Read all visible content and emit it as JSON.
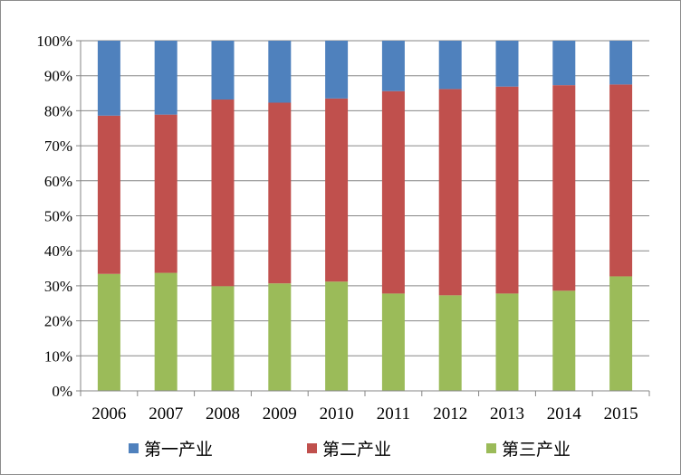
{
  "chart_data": {
    "type": "bar",
    "stacked": true,
    "percent": true,
    "categories": [
      "2006",
      "2007",
      "2008",
      "2009",
      "2010",
      "2011",
      "2012",
      "2013",
      "2014",
      "2015"
    ],
    "series": [
      {
        "name": "第三产业",
        "color": "#9bbb59",
        "values": [
          33.4,
          33.7,
          29.9,
          30.7,
          31.2,
          27.8,
          27.3,
          27.8,
          28.6,
          32.7
        ]
      },
      {
        "name": "第二产业",
        "color": "#c0504d",
        "values": [
          45.2,
          45.2,
          53.3,
          51.6,
          52.3,
          57.8,
          58.9,
          59.1,
          58.7,
          54.8
        ]
      },
      {
        "name": "第一产业",
        "color": "#4f81bd",
        "values": [
          21.4,
          21.1,
          16.8,
          17.7,
          16.5,
          14.4,
          13.8,
          13.1,
          12.7,
          12.5
        ]
      }
    ],
    "y_ticks": [
      "0%",
      "10%",
      "20%",
      "30%",
      "40%",
      "50%",
      "60%",
      "70%",
      "80%",
      "90%",
      "100%"
    ],
    "ylim": [
      0,
      100
    ],
    "grid": true,
    "legend_position": "bottom",
    "legend_order": [
      "第一产业",
      "第二产业",
      "第三产业"
    ]
  }
}
